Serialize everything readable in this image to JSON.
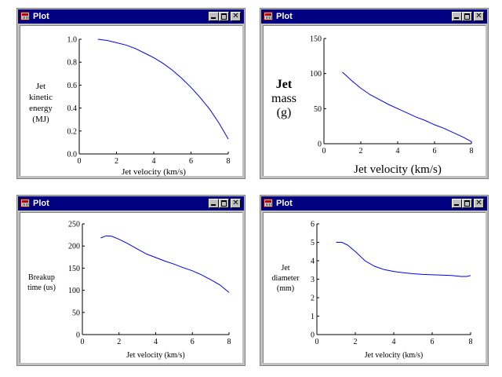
{
  "windows": [
    {
      "title": "Plot",
      "close_glyph": "✕",
      "chart_data": {
        "type": "line",
        "title": "",
        "ylabel_lines": [
          "Jet",
          "kinetic",
          "energy",
          "(MJ)"
        ],
        "xlabel": "Jet velocity (km/s)",
        "xlim": [
          0,
          8
        ],
        "ylim": [
          0,
          1.0
        ],
        "xticks": [
          "0",
          "2",
          "4",
          "6",
          "8"
        ],
        "yticks": [
          "0.0",
          "0.2",
          "0.4",
          "0.6",
          "0.8",
          "1.0"
        ],
        "grid": false,
        "line_color": "#0000ff",
        "series": [
          {
            "x": [
              1.0,
              1.5,
              2.0,
              2.5,
              3.0,
              3.5,
              4.0,
              4.5,
              5.0,
              5.5,
              6.0,
              6.5,
              7.0,
              7.5,
              8.0
            ],
            "y": [
              1.0,
              0.99,
              0.97,
              0.95,
              0.92,
              0.88,
              0.84,
              0.79,
              0.73,
              0.66,
              0.58,
              0.49,
              0.39,
              0.27,
              0.13
            ]
          }
        ]
      }
    },
    {
      "title": "Plot",
      "close_glyph": "✕",
      "chart_data": {
        "type": "line",
        "title": "",
        "ylabel_lines": [
          "Jet",
          "mass",
          "(g)"
        ],
        "xlabel": "Jet velocity (km/s)",
        "xlim": [
          0,
          8
        ],
        "ylim": [
          0,
          150
        ],
        "xticks": [
          "0",
          "2",
          "4",
          "6",
          "8"
        ],
        "yticks": [
          "0",
          "50",
          "100",
          "150"
        ],
        "grid": false,
        "line_color": "#0000ff",
        "series": [
          {
            "x": [
              1.0,
              1.5,
              2.0,
              2.5,
              3.0,
              3.5,
              4.0,
              4.5,
              5.0,
              5.5,
              6.0,
              6.5,
              7.0,
              7.5,
              8.0
            ],
            "y": [
              102,
              90,
              79,
              70,
              63,
              56,
              50,
              44,
              38,
              33,
              27,
              22,
              16,
              10,
              3
            ]
          }
        ]
      }
    },
    {
      "title": "Plot",
      "close_glyph": "✕",
      "chart_data": {
        "type": "line",
        "title": "",
        "ylabel_lines": [
          "Breakup",
          "time (us)"
        ],
        "xlabel": "Jet velocity (km/s)",
        "xlim": [
          0,
          8
        ],
        "ylim": [
          0,
          250
        ],
        "xticks": [
          "0",
          "2",
          "4",
          "6",
          "8"
        ],
        "yticks": [
          "0",
          "50",
          "100",
          "150",
          "200",
          "250"
        ],
        "grid": false,
        "line_color": "#0000ff",
        "series": [
          {
            "x": [
              1.0,
              1.3,
              1.6,
              2.0,
              2.5,
              3.0,
              3.5,
              4.0,
              4.5,
              5.0,
              5.5,
              6.0,
              6.5,
              7.0,
              7.5,
              8.0
            ],
            "y": [
              218,
              223,
              222,
              215,
              205,
              193,
              182,
              174,
              166,
              159,
              151,
              144,
              135,
              124,
              112,
              95
            ]
          }
        ]
      }
    },
    {
      "title": "Plot",
      "close_glyph": "✕",
      "chart_data": {
        "type": "line",
        "title": "",
        "ylabel_lines": [
          "Jet",
          "diameter",
          "(mm)"
        ],
        "xlabel": "Jet velocity (km/s)",
        "xlim": [
          0,
          8
        ],
        "ylim": [
          0,
          6
        ],
        "xticks": [
          "0",
          "2",
          "4",
          "6",
          "8"
        ],
        "yticks": [
          "0",
          "1",
          "2",
          "3",
          "4",
          "5",
          "6"
        ],
        "grid": false,
        "line_color": "#0000ff",
        "series": [
          {
            "x": [
              1.0,
              1.3,
              1.6,
              2.0,
              2.5,
              3.0,
              3.5,
              4.0,
              4.5,
              5.0,
              5.5,
              6.0,
              6.5,
              7.0,
              7.5,
              7.8,
              8.0
            ],
            "y": [
              5.0,
              5.0,
              4.85,
              4.5,
              4.0,
              3.7,
              3.52,
              3.42,
              3.35,
              3.3,
              3.26,
              3.24,
              3.22,
              3.2,
              3.15,
              3.15,
              3.2
            ]
          }
        ]
      }
    }
  ]
}
